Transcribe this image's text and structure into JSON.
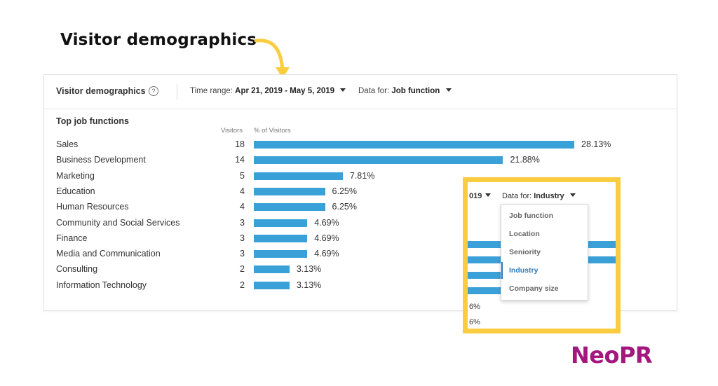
{
  "heading": "Visitor demographics",
  "card": {
    "title": "Visitor demographics",
    "help_icon": "?",
    "time_range_label": "Time range:",
    "time_range_value": "Apr 21, 2019 - May 5, 2019",
    "data_for_label": "Data for:",
    "data_for_value": "Job function",
    "section_title": "Top job functions",
    "col_visitors": "Visitors",
    "col_pct": "% of Visitors",
    "bar_color": "#3aa1d8",
    "rows": [
      {
        "label": "Sales",
        "count": "18",
        "pct": "28.13%",
        "value": 28.13
      },
      {
        "label": "Business Development",
        "count": "14",
        "pct": "21.88%",
        "value": 21.88
      },
      {
        "label": "Marketing",
        "count": "5",
        "pct": "7.81%",
        "value": 7.81
      },
      {
        "label": "Education",
        "count": "4",
        "pct": "6.25%",
        "value": 6.25
      },
      {
        "label": "Human Resources",
        "count": "4",
        "pct": "6.25%",
        "value": 6.25
      },
      {
        "label": "Community and Social Services",
        "count": "3",
        "pct": "4.69%",
        "value": 4.69
      },
      {
        "label": "Finance",
        "count": "3",
        "pct": "4.69%",
        "value": 4.69
      },
      {
        "label": "Media and Communication",
        "count": "3",
        "pct": "4.69%",
        "value": 4.69
      },
      {
        "label": "Consulting",
        "count": "2",
        "pct": "3.13%",
        "value": 3.13
      },
      {
        "label": "Information Technology",
        "count": "2",
        "pct": "3.13%",
        "value": 3.13
      }
    ]
  },
  "zoom": {
    "range_fragment": "019",
    "data_for_label": "Data for:",
    "data_for_value": "Industry",
    "pct_fragment_1": "6%",
    "pct_fragment_2": "6%",
    "highlight_color": "#f9cd3f",
    "menu": [
      "Job function",
      "Location",
      "Seniority",
      "Industry",
      "Company size"
    ],
    "selected": "Industry"
  },
  "logo": {
    "neo": "Neo",
    "pr": "PR",
    "color": "#a3177e"
  }
}
